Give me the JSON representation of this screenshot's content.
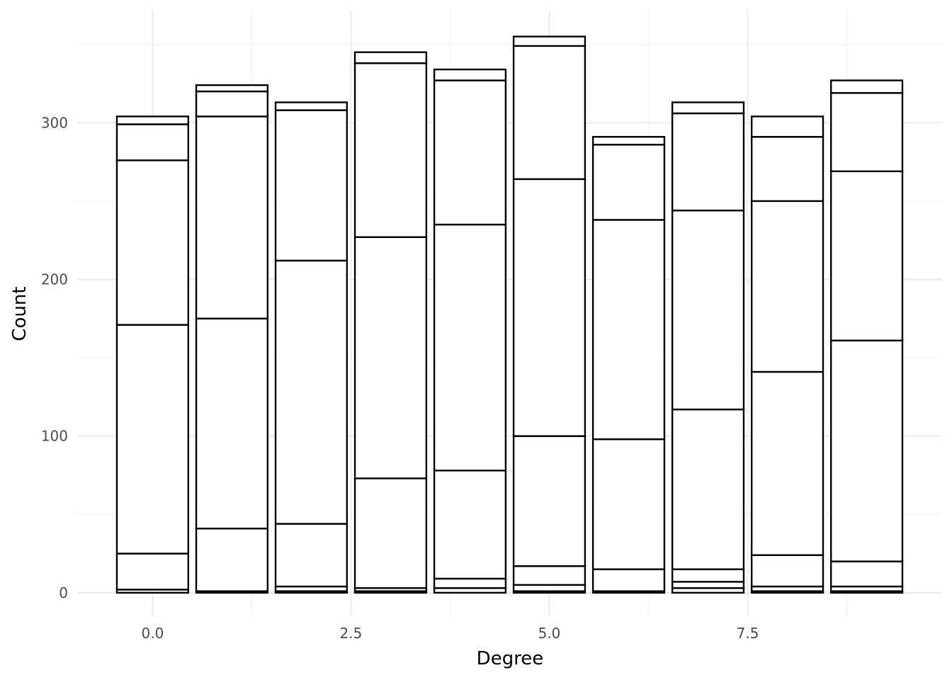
{
  "chart_data": {
    "type": "bar",
    "stacked": true,
    "xlabel": "Degree",
    "ylabel": "Count",
    "xlim": [
      -0.95,
      9.95
    ],
    "ylim": [
      -15,
      372
    ],
    "x_ticks": [
      0,
      2.5,
      5,
      7.5
    ],
    "x_tick_labels": [
      "0.0",
      "2.5",
      "5.0",
      "7.5"
    ],
    "y_ticks": [
      0,
      100,
      200,
      300
    ],
    "y_tick_labels": [
      "0",
      "100",
      "200",
      "300"
    ],
    "grid": true,
    "legend": "none",
    "fill_color": "#ffffff",
    "stroke_color": "#000000",
    "bars": [
      {
        "x": 0,
        "stack_boundaries": [
          0,
          2,
          25,
          171,
          276,
          299,
          304
        ]
      },
      {
        "x": 1,
        "stack_boundaries": [
          0,
          1,
          41,
          175,
          304,
          320,
          324
        ]
      },
      {
        "x": 2,
        "stack_boundaries": [
          0,
          1,
          4,
          44,
          212,
          308,
          313
        ]
      },
      {
        "x": 3,
        "stack_boundaries": [
          0,
          1,
          3,
          73,
          227,
          338,
          345
        ]
      },
      {
        "x": 4,
        "stack_boundaries": [
          0,
          3,
          9,
          78,
          235,
          327,
          334
        ]
      },
      {
        "x": 5,
        "stack_boundaries": [
          0,
          1,
          5,
          17,
          100,
          264,
          349,
          355
        ]
      },
      {
        "x": 6,
        "stack_boundaries": [
          0,
          1,
          15,
          98,
          238,
          286,
          291
        ]
      },
      {
        "x": 7,
        "stack_boundaries": [
          0,
          3,
          7,
          15,
          117,
          244,
          306,
          313
        ]
      },
      {
        "x": 8,
        "stack_boundaries": [
          0,
          1,
          4,
          24,
          141,
          250,
          291,
          304
        ]
      },
      {
        "x": 9,
        "stack_boundaries": [
          0,
          1,
          4,
          20,
          161,
          269,
          319,
          327
        ]
      }
    ]
  }
}
